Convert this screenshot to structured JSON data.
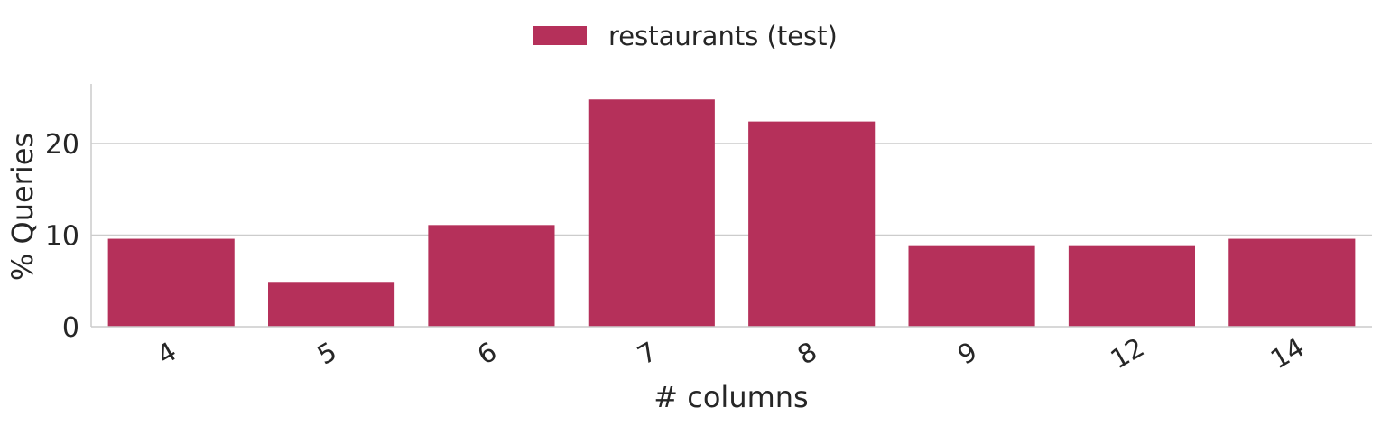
{
  "chart_data": {
    "type": "bar",
    "title": "",
    "xlabel": "# columns",
    "ylabel": "% Queries",
    "categories": [
      "4",
      "5",
      "6",
      "7",
      "8",
      "9",
      "12",
      "14"
    ],
    "series": [
      {
        "name": "restaurants (test)",
        "color": "#b5305a",
        "values": [
          9.6,
          4.8,
          11.1,
          24.8,
          22.4,
          8.8,
          8.8,
          9.6
        ]
      }
    ],
    "ylim": [
      0,
      26.5
    ],
    "yticks": [
      0,
      10,
      20
    ],
    "ytick_labels": [
      "0",
      "10",
      "20"
    ],
    "grid": "horizontal",
    "legend_position": "top-center",
    "xtick_rotation_deg": -30
  }
}
